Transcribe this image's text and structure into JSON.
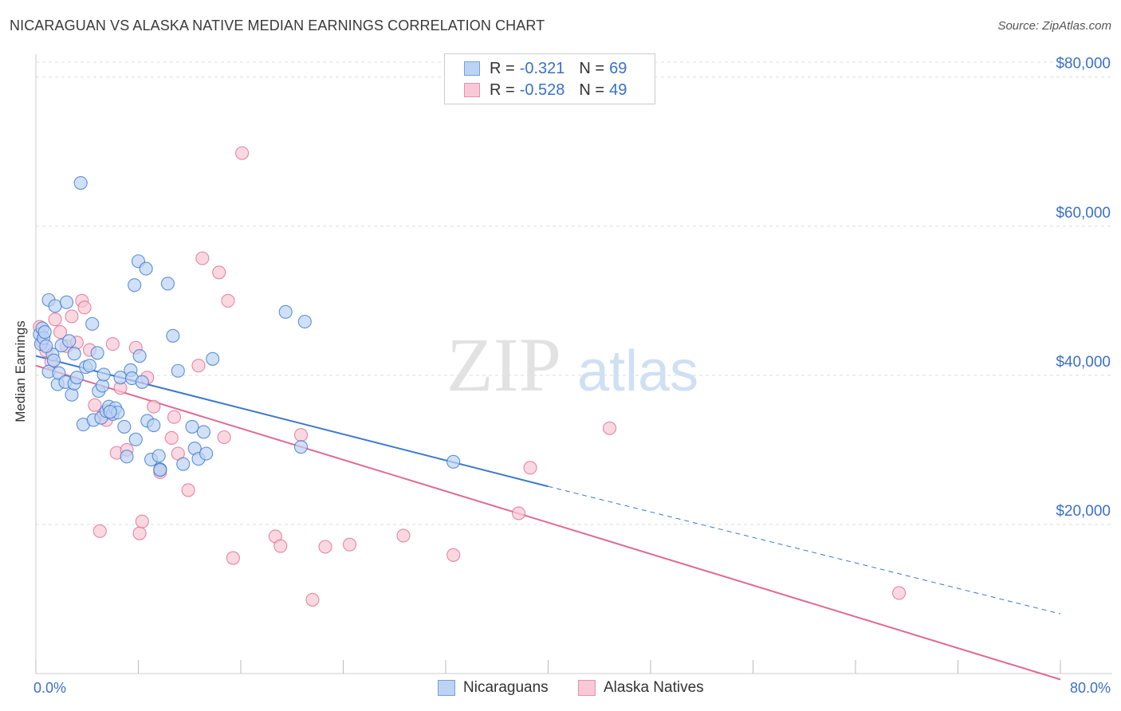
{
  "title": "NICARAGUAN VS ALASKA NATIVE MEDIAN EARNINGS CORRELATION CHART",
  "source": "Source: ZipAtlas.com",
  "watermark": {
    "zip": "ZIP",
    "atlas": "atlas"
  },
  "legend_stats": [
    {
      "r_label": "R =",
      "r_value": "-0.321",
      "n_label": "N =",
      "n_value": "69",
      "color": "#6fa1e0",
      "fill": "#bcd3f3"
    },
    {
      "r_label": "R =",
      "r_value": "-0.528",
      "n_label": "N =",
      "n_value": "49",
      "color": "#e890ab",
      "fill": "#f8c8d6"
    }
  ],
  "bottom_legend": [
    {
      "label": "Nicaraguans",
      "color": "#6fa1e0",
      "fill": "#bcd3f3"
    },
    {
      "label": "Alaska Natives",
      "color": "#e890ab",
      "fill": "#f8c8d6"
    }
  ],
  "chart_data": {
    "type": "scatter",
    "title": "NICARAGUAN VS ALASKA NATIVE MEDIAN EARNINGS CORRELATION CHART",
    "xlabel": "",
    "ylabel": "Median Earnings",
    "xlim": [
      0,
      80
    ],
    "ylim": [
      0,
      82000
    ],
    "x_tick_labels": [
      "0.0%",
      "80.0%"
    ],
    "y_ticks": [
      20000,
      40000,
      60000,
      80000
    ],
    "y_tick_labels": [
      "$20,000",
      "$40,000",
      "$60,000",
      "$80,000"
    ],
    "grid": true,
    "legend_position": "top-center",
    "series": [
      {
        "name": "Nicaraguans",
        "color": "#3a78d0",
        "marker_fill": "#bcd3f3",
        "trend": {
          "x": [
            0,
            40
          ],
          "y": [
            42600,
            25100
          ],
          "dashed_to": [
            80,
            8000
          ]
        },
        "points": [
          [
            0.3,
            45500
          ],
          [
            0.4,
            44200
          ],
          [
            0.5,
            46300
          ],
          [
            0.6,
            45000
          ],
          [
            0.7,
            45800
          ],
          [
            1.0,
            50100
          ],
          [
            1.0,
            40500
          ],
          [
            1.3,
            42800
          ],
          [
            1.4,
            42000
          ],
          [
            1.5,
            49300
          ],
          [
            1.7,
            38800
          ],
          [
            1.8,
            40300
          ],
          [
            2.0,
            44000
          ],
          [
            2.3,
            39100
          ],
          [
            2.4,
            49800
          ],
          [
            2.6,
            44600
          ],
          [
            2.8,
            37400
          ],
          [
            3.0,
            38900
          ],
          [
            3.0,
            42900
          ],
          [
            3.2,
            39700
          ],
          [
            3.5,
            65800
          ],
          [
            3.7,
            33400
          ],
          [
            3.9,
            41100
          ],
          [
            4.2,
            41300
          ],
          [
            4.4,
            46900
          ],
          [
            4.5,
            34000
          ],
          [
            4.8,
            43000
          ],
          [
            4.9,
            37900
          ],
          [
            5.1,
            34300
          ],
          [
            5.2,
            38600
          ],
          [
            5.3,
            40100
          ],
          [
            5.5,
            35200
          ],
          [
            5.7,
            35800
          ],
          [
            6.0,
            34800
          ],
          [
            6.2,
            35600
          ],
          [
            6.4,
            35000
          ],
          [
            6.6,
            39700
          ],
          [
            6.9,
            33100
          ],
          [
            7.1,
            29100
          ],
          [
            7.4,
            40700
          ],
          [
            7.5,
            39600
          ],
          [
            7.7,
            52100
          ],
          [
            7.8,
            31400
          ],
          [
            8.0,
            55300
          ],
          [
            8.1,
            42600
          ],
          [
            8.3,
            39100
          ],
          [
            8.6,
            54300
          ],
          [
            8.7,
            33900
          ],
          [
            9.0,
            28700
          ],
          [
            9.2,
            33300
          ],
          [
            9.6,
            29200
          ],
          [
            9.7,
            27400
          ],
          [
            10.3,
            52300
          ],
          [
            10.7,
            45300
          ],
          [
            11.1,
            40600
          ],
          [
            11.5,
            28100
          ],
          [
            12.2,
            33100
          ],
          [
            12.4,
            30200
          ],
          [
            12.7,
            28800
          ],
          [
            13.1,
            32400
          ],
          [
            13.3,
            29500
          ],
          [
            13.8,
            42200
          ],
          [
            19.5,
            48500
          ],
          [
            20.7,
            30400
          ],
          [
            21.0,
            47200
          ],
          [
            32.6,
            28400
          ],
          [
            0.8,
            43900
          ],
          [
            5.8,
            35100
          ],
          [
            9.7,
            27300
          ]
        ]
      },
      {
        "name": "Alaska Natives",
        "color": "#e06a92",
        "marker_fill": "#f8c8d6",
        "trend": {
          "x": [
            0,
            80
          ],
          "y": [
            41300,
            -800
          ]
        },
        "points": [
          [
            0.3,
            46500
          ],
          [
            0.5,
            44500
          ],
          [
            0.8,
            43300
          ],
          [
            1.2,
            41800
          ],
          [
            1.5,
            47500
          ],
          [
            1.9,
            45800
          ],
          [
            2.4,
            43900
          ],
          [
            2.8,
            47900
          ],
          [
            3.2,
            44400
          ],
          [
            3.6,
            50000
          ],
          [
            3.8,
            49100
          ],
          [
            4.2,
            43400
          ],
          [
            4.6,
            36000
          ],
          [
            5.0,
            19100
          ],
          [
            5.3,
            34800
          ],
          [
            5.5,
            34000
          ],
          [
            6.0,
            44200
          ],
          [
            6.3,
            29600
          ],
          [
            6.6,
            38300
          ],
          [
            7.1,
            30000
          ],
          [
            7.8,
            43700
          ],
          [
            8.1,
            18800
          ],
          [
            8.3,
            20400
          ],
          [
            8.7,
            39700
          ],
          [
            9.2,
            35800
          ],
          [
            9.7,
            27000
          ],
          [
            10.6,
            31600
          ],
          [
            10.8,
            34400
          ],
          [
            11.1,
            29500
          ],
          [
            11.9,
            24600
          ],
          [
            12.7,
            41300
          ],
          [
            13.0,
            55700
          ],
          [
            14.3,
            53800
          ],
          [
            14.7,
            31700
          ],
          [
            15.0,
            50000
          ],
          [
            15.4,
            15500
          ],
          [
            16.1,
            69800
          ],
          [
            18.7,
            18400
          ],
          [
            19.1,
            17100
          ],
          [
            20.7,
            32000
          ],
          [
            21.6,
            9900
          ],
          [
            22.6,
            17000
          ],
          [
            24.5,
            17300
          ],
          [
            28.7,
            18500
          ],
          [
            32.6,
            15900
          ],
          [
            37.7,
            21500
          ],
          [
            38.6,
            27600
          ],
          [
            44.8,
            32900
          ],
          [
            67.4,
            10800
          ]
        ]
      }
    ]
  }
}
